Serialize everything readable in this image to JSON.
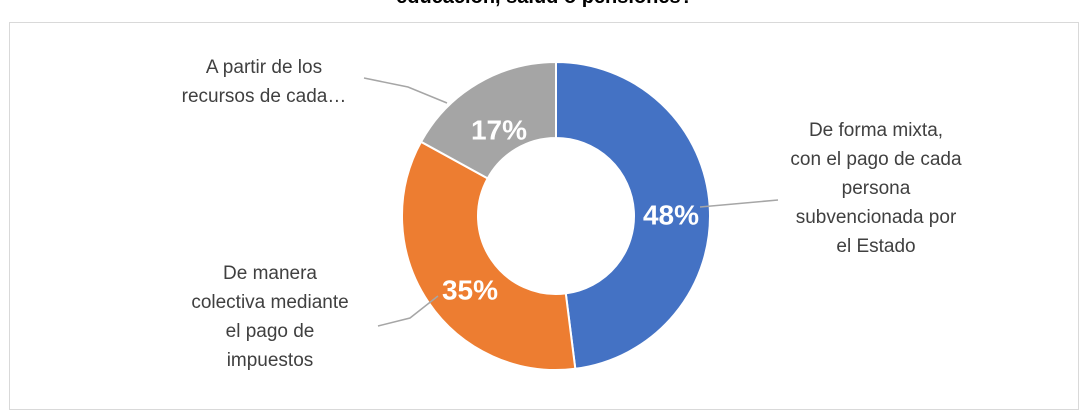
{
  "chart_data": {
    "type": "pie",
    "title": "educación, salud o pensiones?",
    "hole": true,
    "slices": [
      {
        "label_lines": [
          "De forma mixta,",
          "con el pago de cada",
          "persona",
          "subvencionada por",
          "el Estado"
        ],
        "value": 48,
        "value_label": "48%",
        "color": "#4472c4"
      },
      {
        "label_lines": [
          "De manera",
          "colectiva mediante",
          "el pago de",
          "impuestos"
        ],
        "value": 35,
        "value_label": "35%",
        "color": "#ed7d31"
      },
      {
        "label_lines": [
          "A partir de los",
          "recursos de cada…"
        ],
        "value": 17,
        "value_label": "17%",
        "color": "#a5a5a5"
      }
    ]
  }
}
